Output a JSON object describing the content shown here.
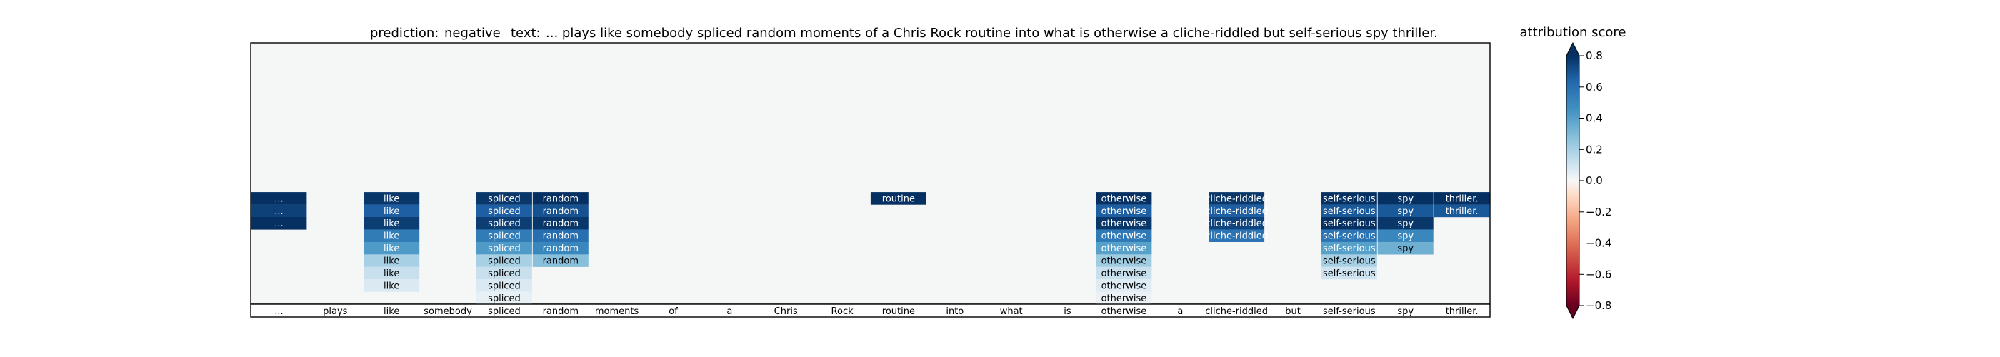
{
  "header": {
    "prediction_label": "prediction:",
    "prediction_value": "negative",
    "text_label": "text:",
    "text_value": "... plays like somebody spliced random moments of a Chris Rock routine into what is otherwise a cliche-riddled but self-serious spy thriller."
  },
  "colorbar": {
    "title": "attribution score",
    "vmin": -0.8,
    "vmax": 0.8,
    "ticks": [
      0.8,
      0.6,
      0.4,
      0.2,
      0.0,
      -0.2,
      -0.4,
      -0.6,
      -0.8
    ],
    "tick_labels": [
      "0.8",
      "0.6",
      "0.4",
      "0.2",
      "0.0",
      "−0.2",
      "−0.4",
      "−0.6",
      "−0.8"
    ],
    "colormap": "RdBu"
  },
  "colors": {
    "panel_background": "#f5f7f7",
    "axis": "#000000"
  },
  "chart_data": {
    "type": "heatmap",
    "title": "",
    "tokens": [
      "...",
      "plays",
      "like",
      "somebody",
      "spliced",
      "random",
      "moments",
      "of",
      "a",
      "Chris",
      "Rock",
      "routine",
      "into",
      "what",
      "is",
      "otherwise",
      "a",
      "cliche-riddled",
      "but",
      "self-serious",
      "spy",
      "thriller."
    ],
    "levels": 10,
    "columns": [
      {
        "token": "...",
        "scores": [
          0.8,
          0.75,
          0.8
        ]
      },
      {
        "token": "plays",
        "scores": []
      },
      {
        "token": "like",
        "scores": [
          0.78,
          0.66,
          0.76,
          0.55,
          0.42,
          0.2,
          0.12,
          0.07
        ]
      },
      {
        "token": "somebody",
        "scores": []
      },
      {
        "token": "spliced",
        "scores": [
          0.78,
          0.66,
          0.76,
          0.55,
          0.42,
          0.2,
          0.12,
          0.07,
          0.04
        ]
      },
      {
        "token": "random",
        "scores": [
          0.8,
          0.7,
          0.78,
          0.6,
          0.5,
          0.28
        ]
      },
      {
        "token": "moments",
        "scores": []
      },
      {
        "token": "of",
        "scores": []
      },
      {
        "token": "a",
        "scores": []
      },
      {
        "token": "Chris",
        "scores": []
      },
      {
        "token": "Rock",
        "scores": []
      },
      {
        "token": "routine",
        "scores": [
          0.8
        ]
      },
      {
        "token": "into",
        "scores": []
      },
      {
        "token": "what",
        "scores": []
      },
      {
        "token": "is",
        "scores": []
      },
      {
        "token": "otherwise",
        "scores": [
          0.8,
          0.66,
          0.78,
          0.56,
          0.4,
          0.22,
          0.12,
          0.06,
          0.03
        ]
      },
      {
        "token": "a",
        "scores": []
      },
      {
        "token": "cliche-riddled",
        "scores": [
          0.78,
          0.66,
          0.74,
          0.58
        ]
      },
      {
        "token": "but",
        "scores": []
      },
      {
        "token": "self-serious",
        "scores": [
          0.8,
          0.68,
          0.8,
          0.58,
          0.4,
          0.2,
          0.1
        ]
      },
      {
        "token": "spy",
        "scores": [
          0.8,
          0.68,
          0.78,
          0.5,
          0.34
        ]
      },
      {
        "token": "thriller.",
        "scores": [
          0.8,
          0.68
        ]
      }
    ]
  }
}
